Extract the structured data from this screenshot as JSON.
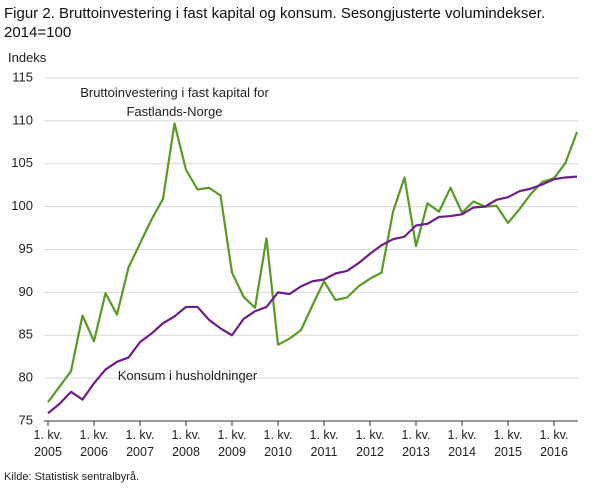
{
  "chart_data": {
    "type": "line",
    "title": "Figur 2. Bruttoinvestering i fast kapital og konsum. Sesongjusterte volumindekser. 2014=100",
    "y_label": "Indeks",
    "source": "Kilde: Statistisk sentralbyrå.",
    "categories": [
      "1. kv. 2005",
      null,
      null,
      null,
      "1. kv. 2006",
      null,
      null,
      null,
      "1. kv. 2007",
      null,
      null,
      null,
      "1. kv. 2008",
      null,
      null,
      null,
      "1. kv. 2009",
      null,
      null,
      null,
      "1. kv. 2010",
      null,
      null,
      null,
      "1. kv. 2011",
      null,
      null,
      null,
      "1. kv. 2012",
      null,
      null,
      null,
      "1. kv. 2013",
      null,
      null,
      null,
      "1. kv. 2014",
      null,
      null,
      null,
      "1. kv. 2015",
      null,
      null,
      null,
      "1. kv. 2016",
      null,
      null
    ],
    "series": [
      {
        "name": "Bruttoinvestering i fast kapital for Fastlands-Norge",
        "color": "#5b9a24",
        "values": [
          77.2,
          79.0,
          80.8,
          87.3,
          84.3,
          89.9,
          87.4,
          92.9,
          95.7,
          98.5,
          100.9,
          109.7,
          104.3,
          102.0,
          102.2,
          101.3,
          92.3,
          89.5,
          88.2,
          96.3,
          83.9,
          84.6,
          85.6,
          88.5,
          91.3,
          89.1,
          89.4,
          90.7,
          91.6,
          92.3,
          99.4,
          103.4,
          95.4,
          100.4,
          99.4,
          102.2,
          99.3,
          100.6,
          100.0,
          100.1,
          98.1,
          99.7,
          101.5,
          102.9,
          103.3,
          105.1,
          108.7
        ]
      },
      {
        "name": "Konsum i husholdninger",
        "color": "#6e1e8c",
        "values": [
          75.9,
          77.0,
          78.4,
          77.5,
          79.4,
          81.0,
          81.9,
          82.4,
          84.2,
          85.2,
          86.4,
          87.2,
          88.3,
          88.3,
          86.8,
          85.8,
          85.0,
          86.9,
          87.8,
          88.3,
          90.0,
          89.8,
          90.7,
          91.3,
          91.5,
          92.2,
          92.5,
          93.4,
          94.5,
          95.5,
          96.2,
          96.5,
          97.8,
          98.0,
          98.8,
          98.9,
          99.1,
          99.9,
          100.0,
          100.8,
          101.1,
          101.8,
          102.1,
          102.6,
          103.2,
          103.4,
          103.5
        ]
      }
    ],
    "ylim": [
      75,
      115
    ],
    "yticks": [
      75,
      80,
      85,
      90,
      95,
      100,
      105,
      110,
      115
    ],
    "grid": true
  }
}
